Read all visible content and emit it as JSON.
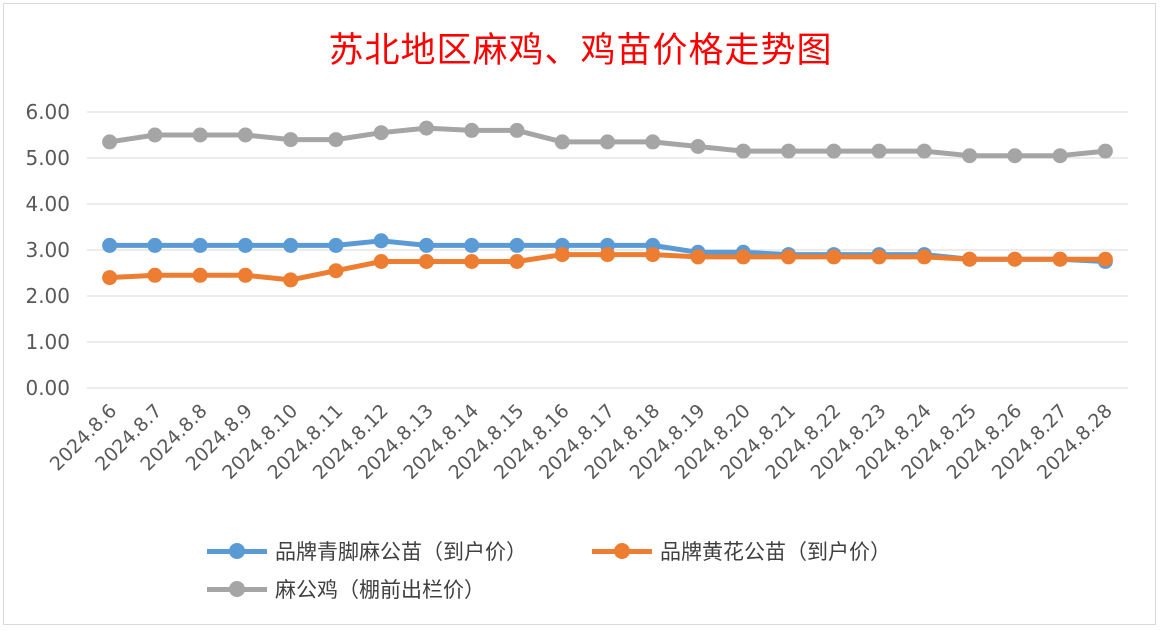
{
  "title": "苏北地区麻鸡、鸡苗价格走势图",
  "chart_data": {
    "type": "line",
    "title": "苏北地区麻鸡、鸡苗价格走势图",
    "xlabel": "",
    "ylabel": "",
    "ylim": [
      0,
      6
    ],
    "yticks": [
      "0.00",
      "1.00",
      "2.00",
      "3.00",
      "4.00",
      "5.00",
      "6.00"
    ],
    "grid": true,
    "legend_position": "bottom",
    "categories": [
      "2024.8.6",
      "2024.8.7",
      "2024.8.8",
      "2024.8.9",
      "2024.8.10",
      "2024.8.11",
      "2024.8.12",
      "2024.8.13",
      "2024.8.14",
      "2024.8.15",
      "2024.8.16",
      "2024.8.17",
      "2024.8.18",
      "2024.8.19",
      "2024.8.20",
      "2024.8.21",
      "2024.8.22",
      "2024.8.23",
      "2024.8.24",
      "2024.8.25",
      "2024.8.26",
      "2024.8.27",
      "2024.8.28"
    ],
    "series": [
      {
        "name": "品牌青脚麻公苗（到户价）",
        "color": "#5b9bd5",
        "values": [
          3.1,
          3.1,
          3.1,
          3.1,
          3.1,
          3.1,
          3.2,
          3.1,
          3.1,
          3.1,
          3.1,
          3.1,
          3.1,
          2.95,
          2.95,
          2.9,
          2.9,
          2.9,
          2.9,
          2.8,
          2.8,
          2.8,
          2.75
        ]
      },
      {
        "name": "品牌黄花公苗（到户价）",
        "color": "#ed7d31",
        "values": [
          2.4,
          2.45,
          2.45,
          2.45,
          2.35,
          2.55,
          2.75,
          2.75,
          2.75,
          2.75,
          2.9,
          2.9,
          2.9,
          2.85,
          2.85,
          2.85,
          2.85,
          2.85,
          2.85,
          2.8,
          2.8,
          2.8,
          2.8
        ]
      },
      {
        "name": "麻公鸡（棚前出栏价）",
        "color": "#a5a5a5",
        "values": [
          5.35,
          5.5,
          5.5,
          5.5,
          5.4,
          5.4,
          5.55,
          5.65,
          5.6,
          5.6,
          5.35,
          5.35,
          5.35,
          5.25,
          5.15,
          5.15,
          5.15,
          5.15,
          5.15,
          5.05,
          5.05,
          5.05,
          5.15
        ]
      }
    ]
  }
}
